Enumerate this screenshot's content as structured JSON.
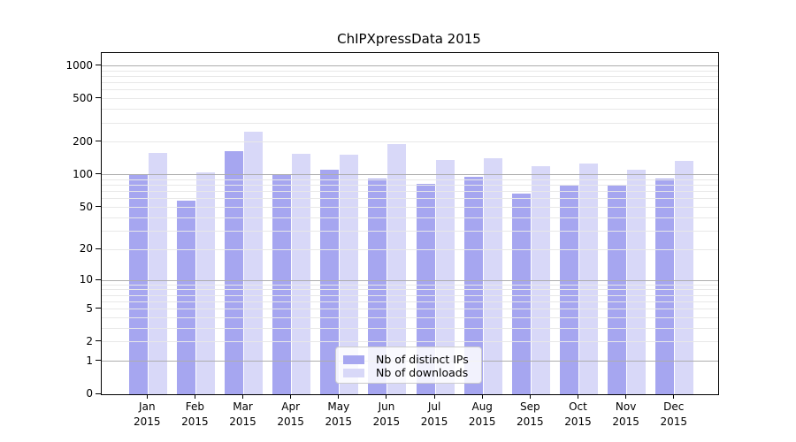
{
  "title": "ChIPXpressData 2015",
  "chart_data": {
    "type": "bar",
    "title": "ChIPXpressData 2015",
    "x_axis": {
      "categories": [
        "Jan",
        "Feb",
        "Mar",
        "Apr",
        "May",
        "Jun",
        "Jul",
        "Aug",
        "Sep",
        "Oct",
        "Nov",
        "Dec"
      ],
      "year_label": "2015"
    },
    "y_axis": {
      "scale": "log1p",
      "ticks": [
        0,
        1,
        2,
        5,
        10,
        20,
        50,
        100,
        200,
        500,
        1000
      ],
      "ylim": [
        0,
        1270
      ]
    },
    "series": [
      {
        "name": "Nb of distinct IPs",
        "color": "#a6a6f0",
        "values": [
          100,
          58,
          165,
          100,
          112,
          92,
          83,
          97,
          67,
          81,
          80,
          92
        ]
      },
      {
        "name": "Nb of downloads",
        "color": "#d8d8f8",
        "values": [
          158,
          106,
          250,
          157,
          155,
          192,
          138,
          142,
          120,
          128,
          111,
          134
        ]
      }
    ],
    "grid": "horizontal",
    "gridline_major_values": [
      1,
      10,
      100,
      1000
    ],
    "legend": {
      "position": "inside-bottom-center",
      "entries": [
        "Nb of distinct IPs",
        "Nb of downloads"
      ]
    },
    "colors": {
      "major_grid": "#adadad",
      "minor_grid": "#e8e8e8",
      "axis": "#000000"
    }
  }
}
